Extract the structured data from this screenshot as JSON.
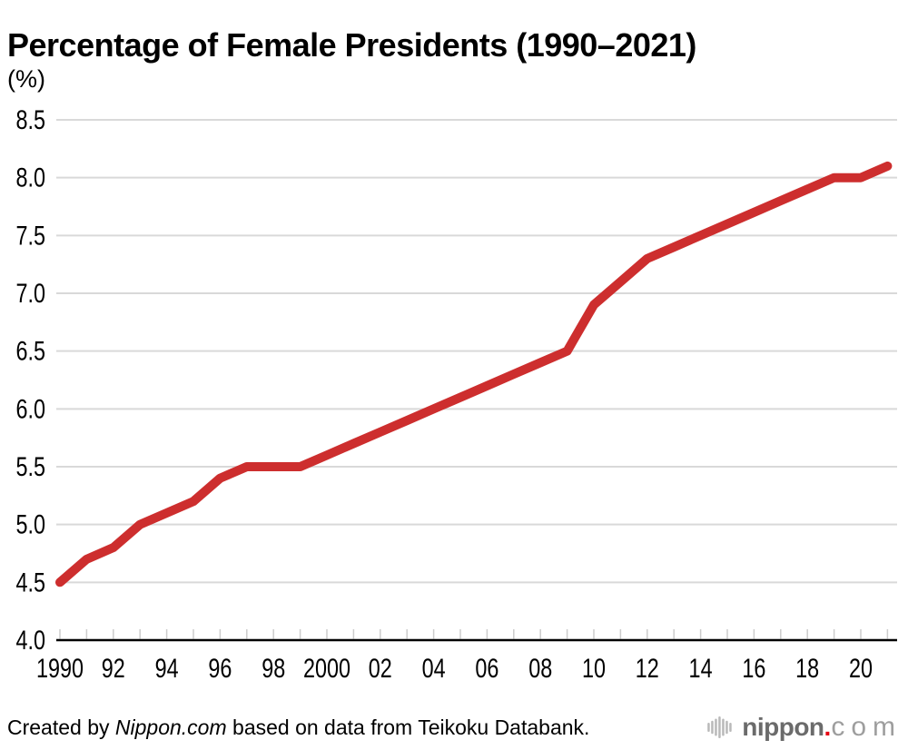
{
  "page": {
    "title": "Percentage of Female Presidents (1990–2021)"
  },
  "chart_data": {
    "type": "line",
    "title": "Percentage of Female Presidents (1990–2021)",
    "ylabel_unit": "(%)",
    "xlabel": "",
    "ylabel": "",
    "x": [
      1990,
      1991,
      1992,
      1993,
      1994,
      1995,
      1996,
      1997,
      1998,
      1999,
      2000,
      2001,
      2002,
      2003,
      2004,
      2005,
      2006,
      2007,
      2008,
      2009,
      2010,
      2011,
      2012,
      2013,
      2014,
      2015,
      2016,
      2017,
      2018,
      2019,
      2020,
      2021
    ],
    "values": [
      4.5,
      4.7,
      4.8,
      5.0,
      5.1,
      5.2,
      5.4,
      5.5,
      5.5,
      5.5,
      5.6,
      5.7,
      5.8,
      5.9,
      6.0,
      6.1,
      6.2,
      6.3,
      6.4,
      6.5,
      6.9,
      7.1,
      7.3,
      7.4,
      7.5,
      7.6,
      7.7,
      7.8,
      7.9,
      8.0,
      8.0,
      8.1
    ],
    "ylim": [
      4.0,
      8.5
    ],
    "xlim": [
      1990,
      2021
    ],
    "grid": true,
    "legend_position": "none",
    "y_ticks": [
      {
        "value": 8.5,
        "label": "8.5"
      },
      {
        "value": 8.0,
        "label": "8.0"
      },
      {
        "value": 7.5,
        "label": "7.5"
      },
      {
        "value": 7.0,
        "label": "7.0"
      },
      {
        "value": 6.5,
        "label": "6.5"
      },
      {
        "value": 6.0,
        "label": "6.0"
      },
      {
        "value": 5.5,
        "label": "5.5"
      },
      {
        "value": 5.0,
        "label": "5.0"
      },
      {
        "value": 4.5,
        "label": "4.5"
      },
      {
        "value": 4.0,
        "label": "4.0"
      }
    ],
    "x_ticks_labeled": [
      {
        "year": 1990,
        "label": "1990"
      },
      {
        "year": 1992,
        "label": "92"
      },
      {
        "year": 1994,
        "label": "94"
      },
      {
        "year": 1996,
        "label": "96"
      },
      {
        "year": 1998,
        "label": "98"
      },
      {
        "year": 2000,
        "label": "2000"
      },
      {
        "year": 2002,
        "label": "02"
      },
      {
        "year": 2004,
        "label": "04"
      },
      {
        "year": 2006,
        "label": "06"
      },
      {
        "year": 2008,
        "label": "08"
      },
      {
        "year": 2010,
        "label": "10"
      },
      {
        "year": 2012,
        "label": "12"
      },
      {
        "year": 2014,
        "label": "14"
      },
      {
        "year": 2016,
        "label": "16"
      },
      {
        "year": 2018,
        "label": "18"
      },
      {
        "year": 2020,
        "label": "20"
      }
    ],
    "colors": {
      "line": "#cd2e2e",
      "grid": "#d9d9d9",
      "tick": "#cccccc",
      "axis": "#000000",
      "text": "#000000"
    }
  },
  "footer": {
    "credit_prefix": "Created by ",
    "credit_source": "Nippon.com",
    "credit_suffix": " based on data from Teikoku Databank.",
    "logo": {
      "name_bold": "nippon",
      "dot": ".",
      "name_light": "com",
      "icon": "soundwave-bars-icon",
      "colors": {
        "name_bold": "#6b6b6b",
        "dot": "#e60012",
        "name_light": "#9e9e9e",
        "bars": "#b9b9b9"
      }
    }
  }
}
